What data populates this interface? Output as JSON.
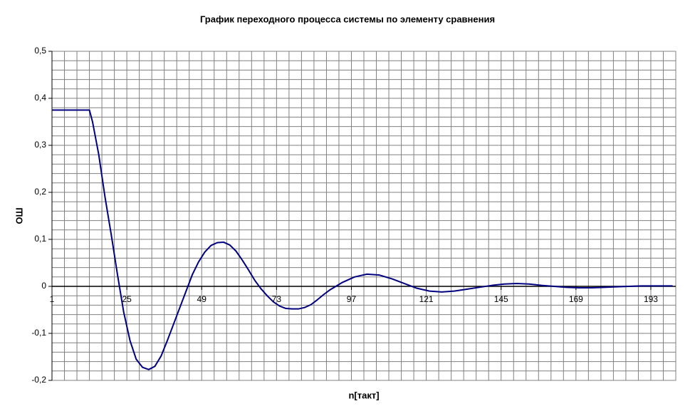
{
  "chart_data": {
    "type": "line",
    "title": "График переходного процесса системы по элементу сравнения",
    "x_label": "n[такт]",
    "y_label": "ОШ",
    "grid": true,
    "xgrid_step": 4,
    "ygrid_step": 0.02,
    "xlim": [
      1,
      201
    ],
    "ylim": [
      -0.2,
      0.5
    ],
    "xticks": [
      1,
      25,
      49,
      73,
      97,
      121,
      145,
      169,
      193
    ],
    "yticks": [
      {
        "value": -0.2,
        "label": "-0,2"
      },
      {
        "value": -0.1,
        "label": "-0,1"
      },
      0,
      {
        "value": 0.1,
        "label": "0,1"
      },
      {
        "value": 0.2,
        "label": "0,2"
      },
      {
        "value": 0.3,
        "label": "0,3"
      },
      {
        "value": 0.4,
        "label": "0,4"
      },
      {
        "value": 0.5,
        "label": "0,5"
      }
    ],
    "x": [
      1,
      13,
      14,
      16,
      18,
      20,
      22,
      24,
      26,
      28,
      30,
      32,
      34,
      36,
      38,
      40,
      42,
      44,
      46,
      48,
      50,
      52,
      54,
      56,
      58,
      60,
      62,
      64,
      66,
      68,
      70,
      72,
      74,
      76,
      78,
      80,
      82,
      84,
      86,
      88,
      90,
      94,
      98,
      102,
      106,
      110,
      114,
      118,
      122,
      126,
      130,
      134,
      138,
      142,
      146,
      150,
      154,
      158,
      162,
      166,
      170,
      174,
      178,
      182,
      186,
      190,
      194,
      200
    ],
    "series": [
      {
        "color": "#000080",
        "values": [
          0.375,
          0.375,
          0.35,
          0.28,
          0.19,
          0.11,
          0.025,
          -0.055,
          -0.115,
          -0.155,
          -0.172,
          -0.177,
          -0.17,
          -0.148,
          -0.115,
          -0.08,
          -0.045,
          -0.01,
          0.025,
          0.052,
          0.073,
          0.087,
          0.093,
          0.094,
          0.088,
          0.075,
          0.056,
          0.035,
          0.013,
          -0.005,
          -0.02,
          -0.033,
          -0.042,
          -0.047,
          -0.048,
          -0.048,
          -0.045,
          -0.039,
          -0.029,
          -0.018,
          -0.008,
          0.008,
          0.02,
          0.026,
          0.024,
          0.016,
          0.006,
          -0.004,
          -0.01,
          -0.012,
          -0.01,
          -0.006,
          -0.002,
          0.002,
          0.005,
          0.006,
          0.005,
          0.002,
          0,
          -0.002,
          -0.003,
          -0.003,
          -0.002,
          -0.001,
          0,
          0.001,
          0.001,
          0.001
        ]
      }
    ]
  }
}
